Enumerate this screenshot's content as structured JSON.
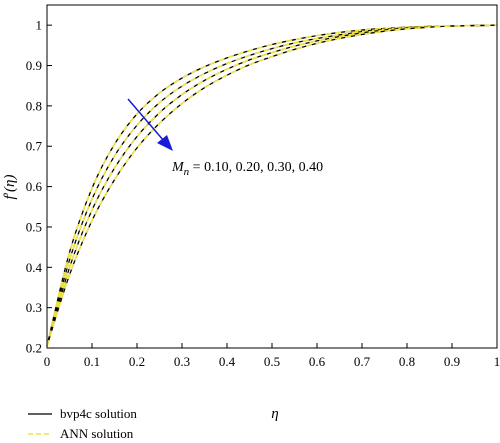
{
  "chart_data": {
    "type": "line",
    "xlabel": "η",
    "ylabel_main": "f",
    "ylabel_prime": "′",
    "ylabel_arg": "(η)",
    "xlim": [
      0,
      1
    ],
    "ylim": [
      0.2,
      1.05
    ],
    "x_ticks": [
      0,
      0.1,
      0.2,
      0.3,
      0.4,
      0.5,
      0.6,
      0.7,
      0.8,
      0.9,
      1
    ],
    "x_tick_labels": [
      "0",
      "0.1",
      "0.2",
      "0.3",
      "0.4",
      "0.5",
      "0.6",
      "0.7",
      "0.8",
      "0.9",
      "1"
    ],
    "y_ticks": [
      0.2,
      0.3,
      0.4,
      0.5,
      0.6,
      0.7,
      0.8,
      0.9,
      1
    ],
    "y_tick_labels": [
      "0.2",
      "0.3",
      "0.4",
      "0.5",
      "0.6",
      "0.7",
      "0.8",
      "0.9",
      "1"
    ],
    "x": [
      0,
      0.05,
      0.1,
      0.15,
      0.2,
      0.25,
      0.3,
      0.35,
      0.4,
      0.45,
      0.5,
      0.55,
      0.6,
      0.65,
      0.7,
      0.75,
      0.8,
      0.85,
      0.9,
      0.95,
      1
    ],
    "series": [
      {
        "values": [
          0.205,
          0.437,
          0.596,
          0.705,
          0.78,
          0.832,
          0.869,
          0.897,
          0.919,
          0.937,
          0.952,
          0.964,
          0.974,
          0.982,
          0.988,
          0.992,
          0.995,
          0.997,
          0.998,
          0.999,
          1.0
        ]
      },
      {
        "values": [
          0.205,
          0.418,
          0.569,
          0.676,
          0.752,
          0.808,
          0.849,
          0.88,
          0.905,
          0.925,
          0.942,
          0.956,
          0.967,
          0.976,
          0.984,
          0.99,
          0.994,
          0.997,
          0.998,
          0.999,
          1.0
        ]
      },
      {
        "values": [
          0.205,
          0.399,
          0.542,
          0.646,
          0.724,
          0.783,
          0.828,
          0.863,
          0.891,
          0.914,
          0.932,
          0.948,
          0.961,
          0.972,
          0.981,
          0.988,
          0.993,
          0.996,
          0.998,
          0.999,
          1.0
        ]
      },
      {
        "values": [
          0.205,
          0.381,
          0.516,
          0.617,
          0.696,
          0.757,
          0.806,
          0.845,
          0.876,
          0.902,
          0.922,
          0.94,
          0.955,
          0.967,
          0.977,
          0.985,
          0.991,
          0.995,
          0.998,
          0.999,
          1.0
        ]
      }
    ],
    "line_styles": {
      "bvp4c": {
        "color": "#000000",
        "dash": "solid"
      },
      "ann": {
        "color": "#f0e442",
        "dash": "dashed"
      }
    },
    "arrow_color": "#1a1adb",
    "annotation": {
      "symbol": "M",
      "subscript": "n",
      "text": " = 0.10, 0.20, 0.30, 0.40"
    },
    "legend": {
      "placement": "bottom-left",
      "entries": [
        {
          "label": "bvp4c solution",
          "color": "#000000",
          "dash": "solid"
        },
        {
          "label": "ANN solution",
          "color": "#f0e442",
          "dash": "dashed"
        }
      ]
    },
    "grid": false
  }
}
